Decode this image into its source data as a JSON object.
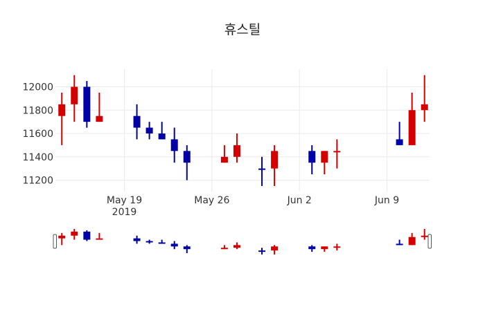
{
  "chart_data": {
    "type": "candlestick",
    "title": "휴스틸",
    "xlabel": "",
    "ylabel": "",
    "ylim": [
      11100,
      12160
    ],
    "x_range": [
      "2019-05-13",
      "2019-06-13"
    ],
    "yticks": [
      11200,
      11400,
      11600,
      11800,
      12000
    ],
    "xticks": [
      {
        "date": "2019-05-19",
        "label": "May 19",
        "sublabel": "2019"
      },
      {
        "date": "2019-05-26",
        "label": "May 26",
        "sublabel": ""
      },
      {
        "date": "2019-06-02",
        "label": "Jun 2",
        "sublabel": ""
      },
      {
        "date": "2019-06-09",
        "label": "Jun 9",
        "sublabel": ""
      }
    ],
    "grid": true,
    "rangeslider": true,
    "increasing_color": "#d40000",
    "decreasing_color": "#0000a8",
    "candles": [
      {
        "date": "2019-05-14",
        "open": 11750,
        "high": 11950,
        "low": 11500,
        "close": 11850
      },
      {
        "date": "2019-05-15",
        "open": 11850,
        "high": 12100,
        "low": 11700,
        "close": 12000
      },
      {
        "date": "2019-05-16",
        "open": 12000,
        "high": 12050,
        "low": 11650,
        "close": 11700
      },
      {
        "date": "2019-05-17",
        "open": 11700,
        "high": 11950,
        "low": 11700,
        "close": 11750
      },
      {
        "date": "2019-05-20",
        "open": 11750,
        "high": 11850,
        "low": 11550,
        "close": 11650
      },
      {
        "date": "2019-05-21",
        "open": 11650,
        "high": 11700,
        "low": 11550,
        "close": 11600
      },
      {
        "date": "2019-05-22",
        "open": 11600,
        "high": 11700,
        "low": 11550,
        "close": 11550
      },
      {
        "date": "2019-05-23",
        "open": 11550,
        "high": 11650,
        "low": 11350,
        "close": 11450
      },
      {
        "date": "2019-05-24",
        "open": 11450,
        "high": 11500,
        "low": 11200,
        "close": 11350
      },
      {
        "date": "2019-05-27",
        "open": 11350,
        "high": 11500,
        "low": 11350,
        "close": 11400
      },
      {
        "date": "2019-05-28",
        "open": 11400,
        "high": 11600,
        "low": 11350,
        "close": 11500
      },
      {
        "date": "2019-05-30",
        "open": 11300,
        "high": 11400,
        "low": 11150,
        "close": 11290
      },
      {
        "date": "2019-05-31",
        "open": 11300,
        "high": 11500,
        "low": 11150,
        "close": 11450
      },
      {
        "date": "2019-06-03",
        "open": 11450,
        "high": 11500,
        "low": 11250,
        "close": 11350
      },
      {
        "date": "2019-06-04",
        "open": 11350,
        "high": 11450,
        "low": 11250,
        "close": 11450
      },
      {
        "date": "2019-06-05",
        "open": 11440,
        "high": 11550,
        "low": 11300,
        "close": 11450
      },
      {
        "date": "2019-06-10",
        "open": 11550,
        "high": 11700,
        "low": 11500,
        "close": 11500
      },
      {
        "date": "2019-06-11",
        "open": 11500,
        "high": 11950,
        "low": 11500,
        "close": 11800
      },
      {
        "date": "2019-06-12",
        "open": 11800,
        "high": 12100,
        "low": 11700,
        "close": 11850
      }
    ]
  }
}
